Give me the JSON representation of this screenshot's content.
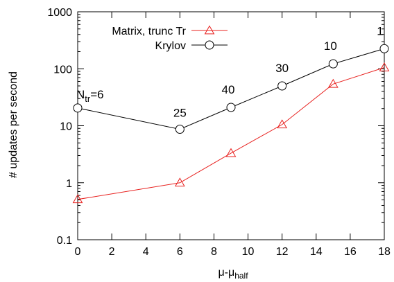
{
  "chart_data": {
    "type": "line",
    "title": "",
    "xlabel": "μ-μ",
    "xlabel_sub": "half",
    "ylabel": "# updates per second",
    "xlim": [
      0,
      18
    ],
    "ylim": [
      0.1,
      1000
    ],
    "yscale": "log",
    "grid": false,
    "legend_position": "top-left",
    "x_ticks": [
      0,
      2,
      4,
      6,
      8,
      10,
      12,
      14,
      16,
      18
    ],
    "y_ticks": [
      0.1,
      1,
      10,
      100,
      1000
    ],
    "y_tick_labels": [
      "0.1",
      "1",
      "10",
      "100",
      "1000"
    ],
    "series": [
      {
        "name": "Matrix, trunc Tr",
        "color": "#e8201e",
        "marker": "triangle",
        "x": [
          0,
          6,
          9,
          12,
          15,
          18
        ],
        "y": [
          0.51,
          1.0,
          3.3,
          10.5,
          54,
          105
        ]
      },
      {
        "name": "Krylov",
        "color": "#000000",
        "marker": "circle",
        "x": [
          0,
          6,
          9,
          12,
          15,
          18
        ],
        "y": [
          20.5,
          8.7,
          21,
          50,
          122,
          225
        ]
      }
    ],
    "annotations": [
      {
        "text": "N",
        "sub": "tr",
        "suffix": "=6",
        "x": 0,
        "y": 20.5
      },
      {
        "text": "25",
        "x": 6,
        "y": 8.7
      },
      {
        "text": "40",
        "x": 9,
        "y": 21
      },
      {
        "text": "30",
        "x": 12,
        "y": 50
      },
      {
        "text": "10",
        "x": 15,
        "y": 122
      },
      {
        "text": "1",
        "x": 18,
        "y": 225
      }
    ]
  }
}
